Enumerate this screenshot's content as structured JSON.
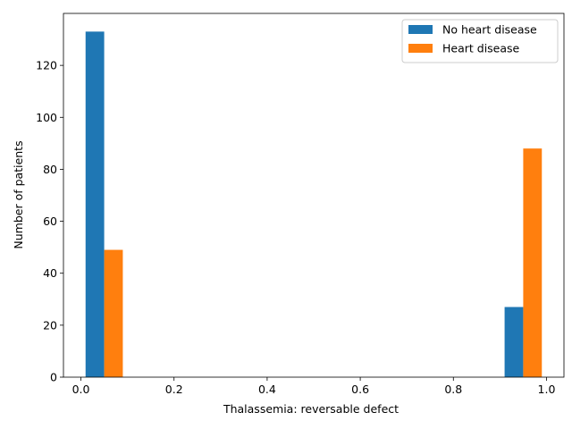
{
  "chart_data": {
    "type": "bar",
    "title": "",
    "xlabel": "Thalassemia: reversable defect",
    "ylabel": "Number of patients",
    "xlim": [
      -0.0375,
      1.0375
    ],
    "ylim": [
      0,
      140
    ],
    "xticks": [
      0.0,
      0.2,
      0.4,
      0.6,
      0.8,
      1.0
    ],
    "xtick_labels": [
      "0.0",
      "0.2",
      "0.4",
      "0.6",
      "0.8",
      "1.0"
    ],
    "yticks": [
      0,
      20,
      40,
      60,
      80,
      100,
      120
    ],
    "ytick_labels": [
      "0",
      "20",
      "40",
      "60",
      "80",
      "100",
      "120"
    ],
    "grid": false,
    "legend_position": "top-right",
    "categories": [
      "0",
      "1"
    ],
    "series": [
      {
        "name": "No heart disease",
        "color": "#1f77b4",
        "bars": [
          {
            "x_start": 0.01,
            "x_end": 0.05,
            "value": 133
          },
          {
            "x_start": 0.91,
            "x_end": 0.95,
            "value": 27
          }
        ]
      },
      {
        "name": "Heart disease",
        "color": "#ff7f0e",
        "bars": [
          {
            "x_start": 0.05,
            "x_end": 0.09,
            "value": 49
          },
          {
            "x_start": 0.95,
            "x_end": 0.99,
            "value": 88
          }
        ]
      }
    ]
  }
}
